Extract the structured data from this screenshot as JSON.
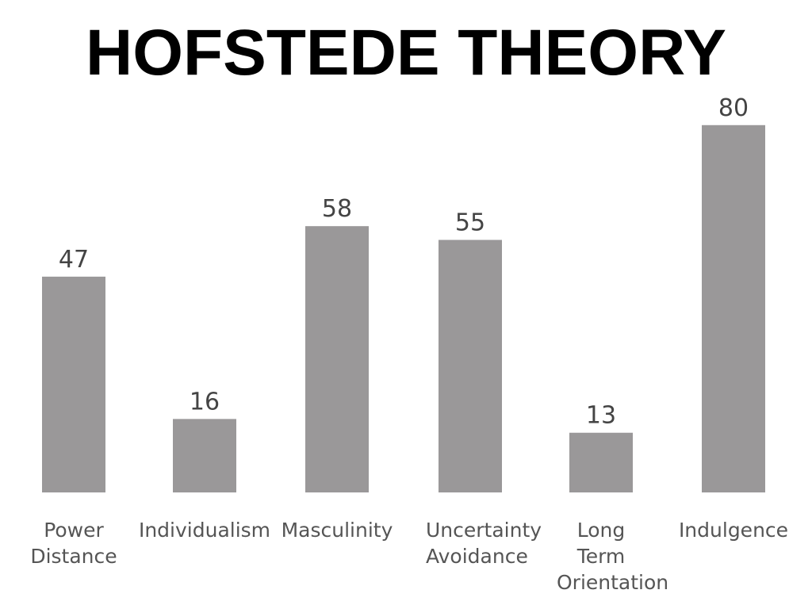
{
  "chart_data": {
    "type": "bar",
    "title": "HOFSTEDE THEORY",
    "categories": [
      "Power Distance",
      "Individualism",
      "Masculinity",
      "Uncertainty Avoidance",
      "Long Term Orientation",
      "Indulgence"
    ],
    "values": [
      47,
      16,
      58,
      55,
      13,
      80
    ],
    "color": "#9a9899"
  }
}
